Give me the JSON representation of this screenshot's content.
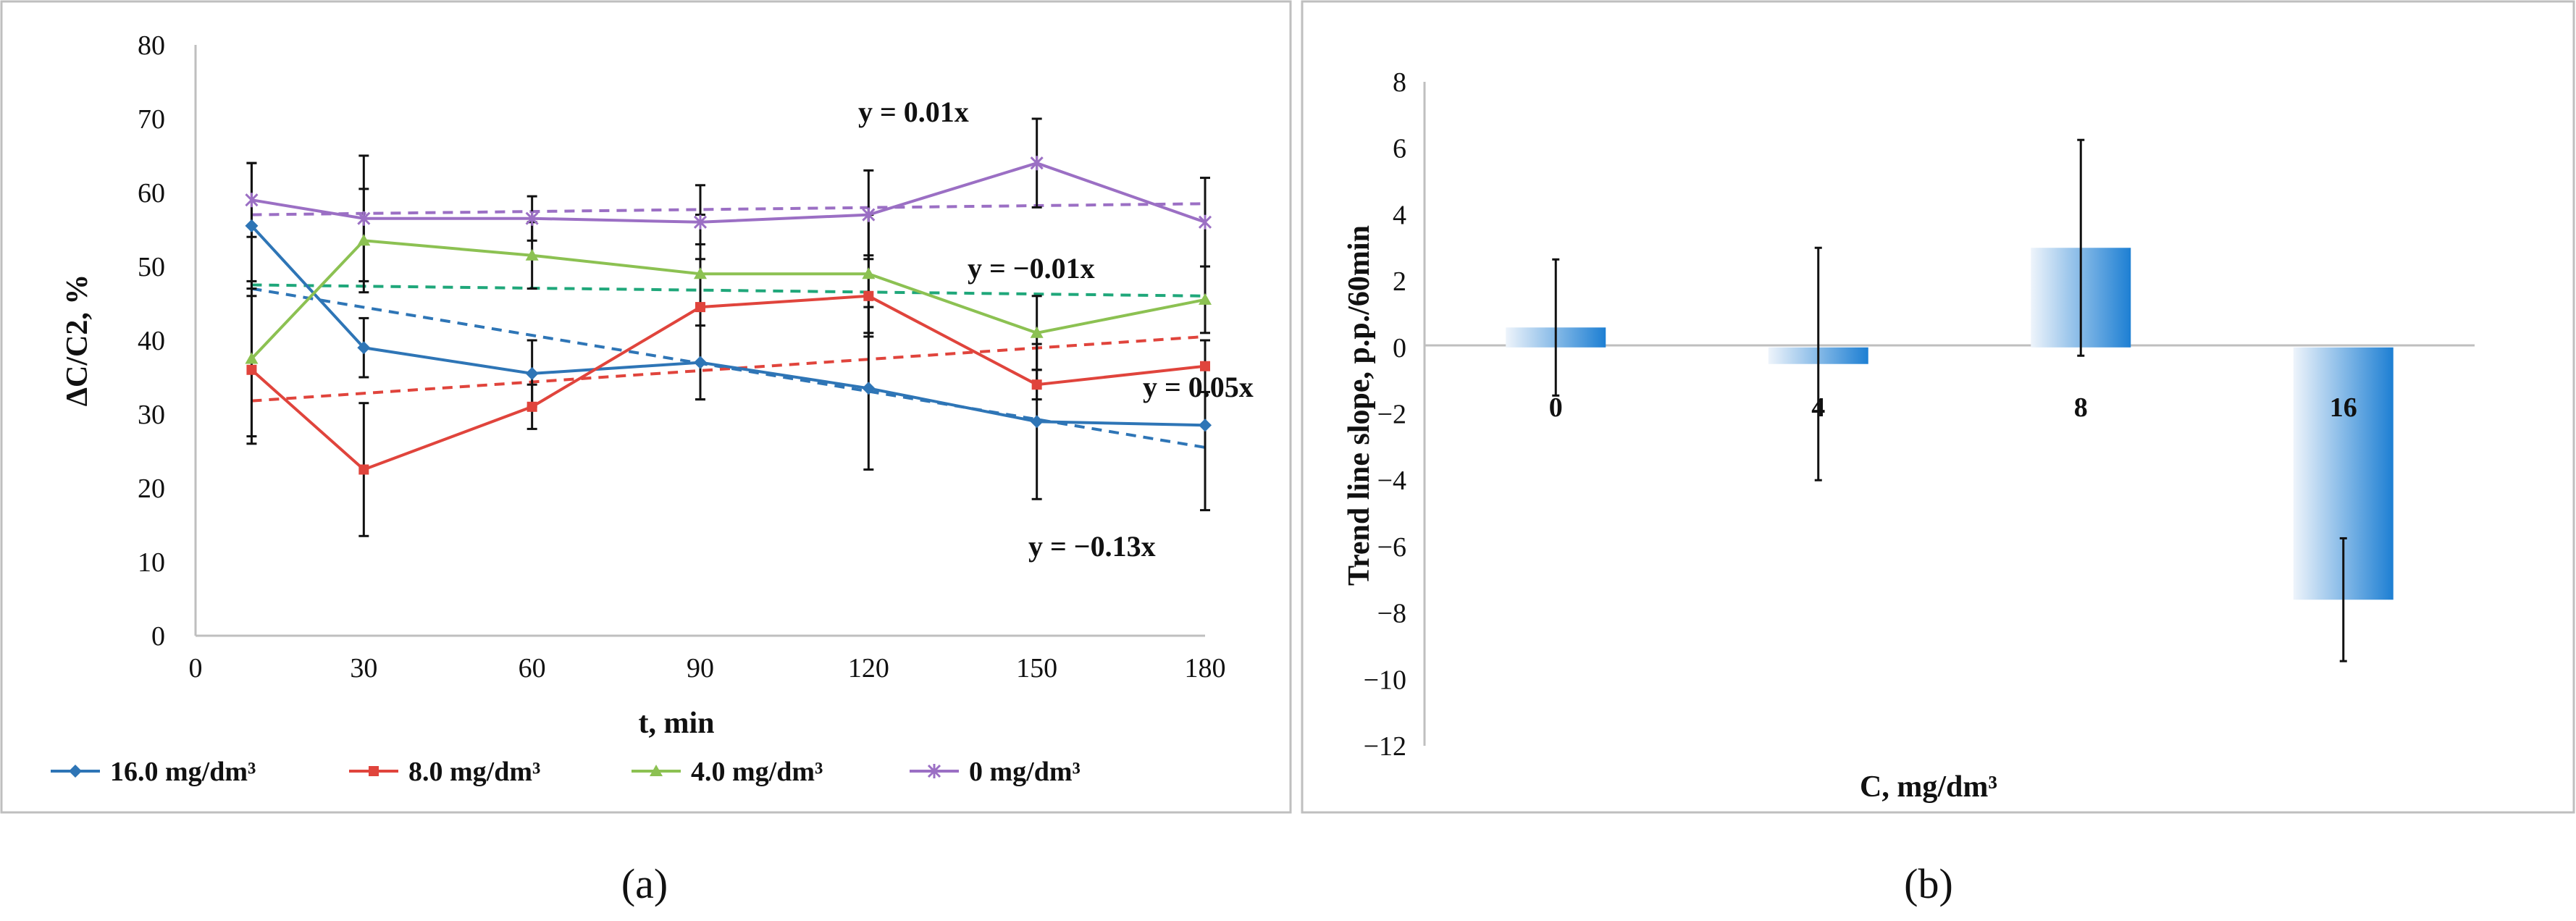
{
  "captions": {
    "a": "(a)",
    "b": "(b)"
  },
  "chart_data": [
    {
      "type": "line",
      "title": "",
      "xlabel": "t, min",
      "ylabel": "ΔC/C2, %",
      "xlim": [
        0,
        180
      ],
      "ylim": [
        0,
        80
      ],
      "x_ticks": [
        0,
        30,
        60,
        90,
        120,
        150,
        180
      ],
      "y_ticks": [
        0,
        10,
        20,
        30,
        40,
        50,
        60,
        70,
        80
      ],
      "grid": false,
      "legend_position": "bottom",
      "x": [
        10,
        30,
        60,
        90,
        120,
        150,
        180
      ],
      "series": [
        {
          "name": "16.0 mg/dm³",
          "color": "#2e75b6",
          "marker": "diamond",
          "values": [
            55.5,
            39,
            35.5,
            37,
            33.5,
            29,
            28.5
          ],
          "errors": [
            8.5,
            4,
            4.5,
            5,
            11,
            10.5,
            11.5
          ],
          "trend": {
            "label": "y = −0.13x",
            "from": [
              10,
              47
            ],
            "to": [
              180,
              25.5
            ]
          }
        },
        {
          "name": "8.0 mg/dm³",
          "color": "#e0443c",
          "marker": "square",
          "values": [
            36,
            22.5,
            31,
            44.5,
            46,
            34,
            36.5
          ],
          "errors": [
            10,
            9,
            3,
            12.5,
            5.5,
            2,
            3.5
          ],
          "trend": {
            "label": "y = 0.05x",
            "from": [
              10,
              31.8
            ],
            "to": [
              180,
              40.5
            ]
          }
        },
        {
          "name": "4.0 mg/dm³",
          "color": "#8cc152",
          "marker": "triangle",
          "values": [
            37.5,
            53.5,
            51.5,
            49,
            49,
            41,
            45.5
          ],
          "errors": [
            10.5,
            7,
            4.5,
            4,
            8,
            5,
            4.5
          ],
          "trend": {
            "label": "y = −0.01x",
            "color": "#1fa77a",
            "from": [
              10,
              47.5
            ],
            "to": [
              180,
              46
            ]
          }
        },
        {
          "name": "0 mg/dm³",
          "color": "#9b6fc4",
          "marker": "cross",
          "values": [
            59,
            56.5,
            56.5,
            56,
            57,
            64,
            56
          ],
          "errors": [
            5,
            8.5,
            3,
            5,
            6,
            6,
            6
          ],
          "trend": {
            "label": "y = 0.01x",
            "from": [
              10,
              57
            ],
            "to": [
              180,
              58.5
            ]
          }
        }
      ]
    },
    {
      "type": "bar",
      "title": "",
      "xlabel": "C, mg/dm³",
      "ylabel": "Trend line slope, p.p./60min",
      "ylim": [
        -12,
        8
      ],
      "y_ticks": [
        -12,
        -10,
        -8,
        -6,
        -4,
        -2,
        0,
        2,
        4,
        6,
        8
      ],
      "categories": [
        "0",
        "4",
        "8",
        "16"
      ],
      "values": [
        0.6,
        -0.5,
        3,
        -7.6
      ],
      "errors": [
        2.05,
        3.5,
        3.25,
        1.85
      ],
      "bar_gradient": [
        "#eef4fb",
        "#1d7fd3"
      ],
      "grid": false
    }
  ]
}
